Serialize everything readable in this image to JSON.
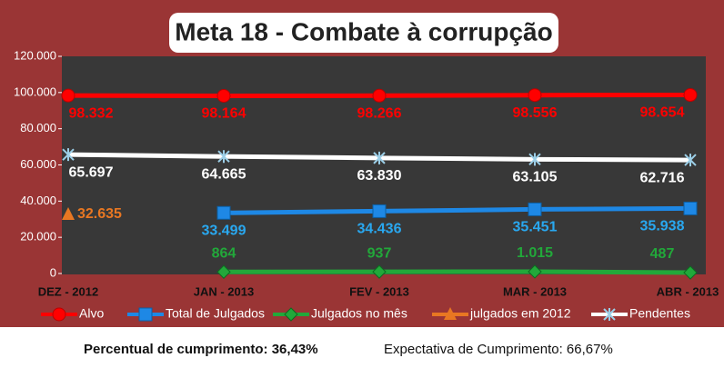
{
  "chart_data": {
    "type": "line",
    "title": "Meta 18 - Combate à corrupção",
    "categories": [
      "DEZ - 2012",
      "JAN - 2013",
      "FEV - 2013",
      "MAR - 2013",
      "ABR - 2013"
    ],
    "series": [
      {
        "name": "Alvo",
        "color": "#ff0000",
        "marker": "circle",
        "values": [
          98332,
          98164,
          98266,
          98556,
          98654
        ],
        "value_labels": [
          "98.332",
          "98.164",
          "98.266",
          "98.556",
          "98.654"
        ]
      },
      {
        "name": "Total de Julgados",
        "color": "#1e88e5",
        "marker": "square",
        "values": [
          null,
          33499,
          34436,
          35451,
          35938
        ],
        "value_labels": [
          null,
          "33.499",
          "34.436",
          "35.451",
          "35.938"
        ]
      },
      {
        "name": "Julgados no mês",
        "color": "#22a83a",
        "marker": "diamond",
        "values": [
          null,
          864,
          937,
          1015,
          487
        ],
        "value_labels": [
          null,
          "864",
          "937",
          "1.015",
          "487"
        ]
      },
      {
        "name": "julgados em 2012",
        "color": "#e87722",
        "marker": "triangle",
        "values": [
          32635,
          null,
          null,
          null,
          null
        ],
        "value_labels": [
          "32.635",
          null,
          null,
          null,
          null
        ]
      },
      {
        "name": "Pendentes",
        "color": "#ffffff",
        "marker": "star",
        "values": [
          65697,
          64665,
          63830,
          63105,
          62716
        ],
        "value_labels": [
          "65.697",
          "64.665",
          "63.830",
          "63.105",
          "62.716"
        ]
      }
    ],
    "ylim": [
      0,
      120000
    ],
    "yticks": [
      0,
      {
        "value": 20000,
        "label": "20.000"
      },
      {
        "value": 40000,
        "label": "40.000"
      },
      {
        "value": 60000,
        "label": "60.000"
      },
      {
        "value": 80000,
        "label": "80.000"
      },
      {
        "value": 100000,
        "label": "100.000"
      },
      {
        "value": 120000,
        "label": "120.000"
      }
    ],
    "grid": false,
    "legend": "bottom",
    "footer": {
      "left": "Percentual de cumprimento:  36,43%",
      "right": "Expectativa de Cumprimento: 66,67%"
    }
  }
}
